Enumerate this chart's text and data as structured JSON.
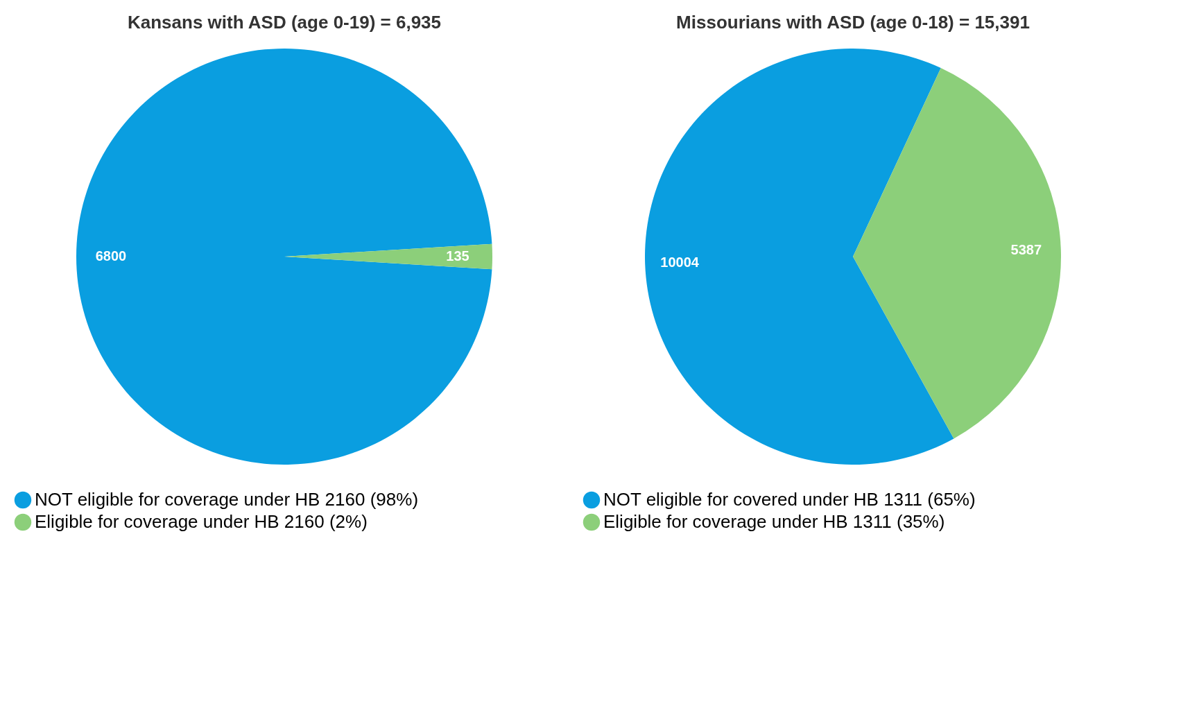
{
  "chart_data": [
    {
      "type": "pie",
      "title": "Kansans with ASD (age 0-19) = 6,935",
      "categories": [
        "NOT eligible for coverage under HB 2160  (98%)",
        "Eligible for coverage under HB 2160    (2%)"
      ],
      "values": [
        6800,
        135
      ],
      "colors": [
        "#0a9ee0",
        "#8ccf7a"
      ],
      "data_labels": true,
      "legend": "bottom"
    },
    {
      "type": "pie",
      "title": "Missourians with ASD (age 0-18) = 15,391",
      "categories": [
        "NOT eligible for covered under HB 1311    (65%)",
        "Eligible for coverage under HB 1311  (35%)"
      ],
      "values": [
        10004,
        5387
      ],
      "colors": [
        "#0a9ee0",
        "#8ccf7a"
      ],
      "data_labels": true,
      "legend": "bottom"
    }
  ]
}
